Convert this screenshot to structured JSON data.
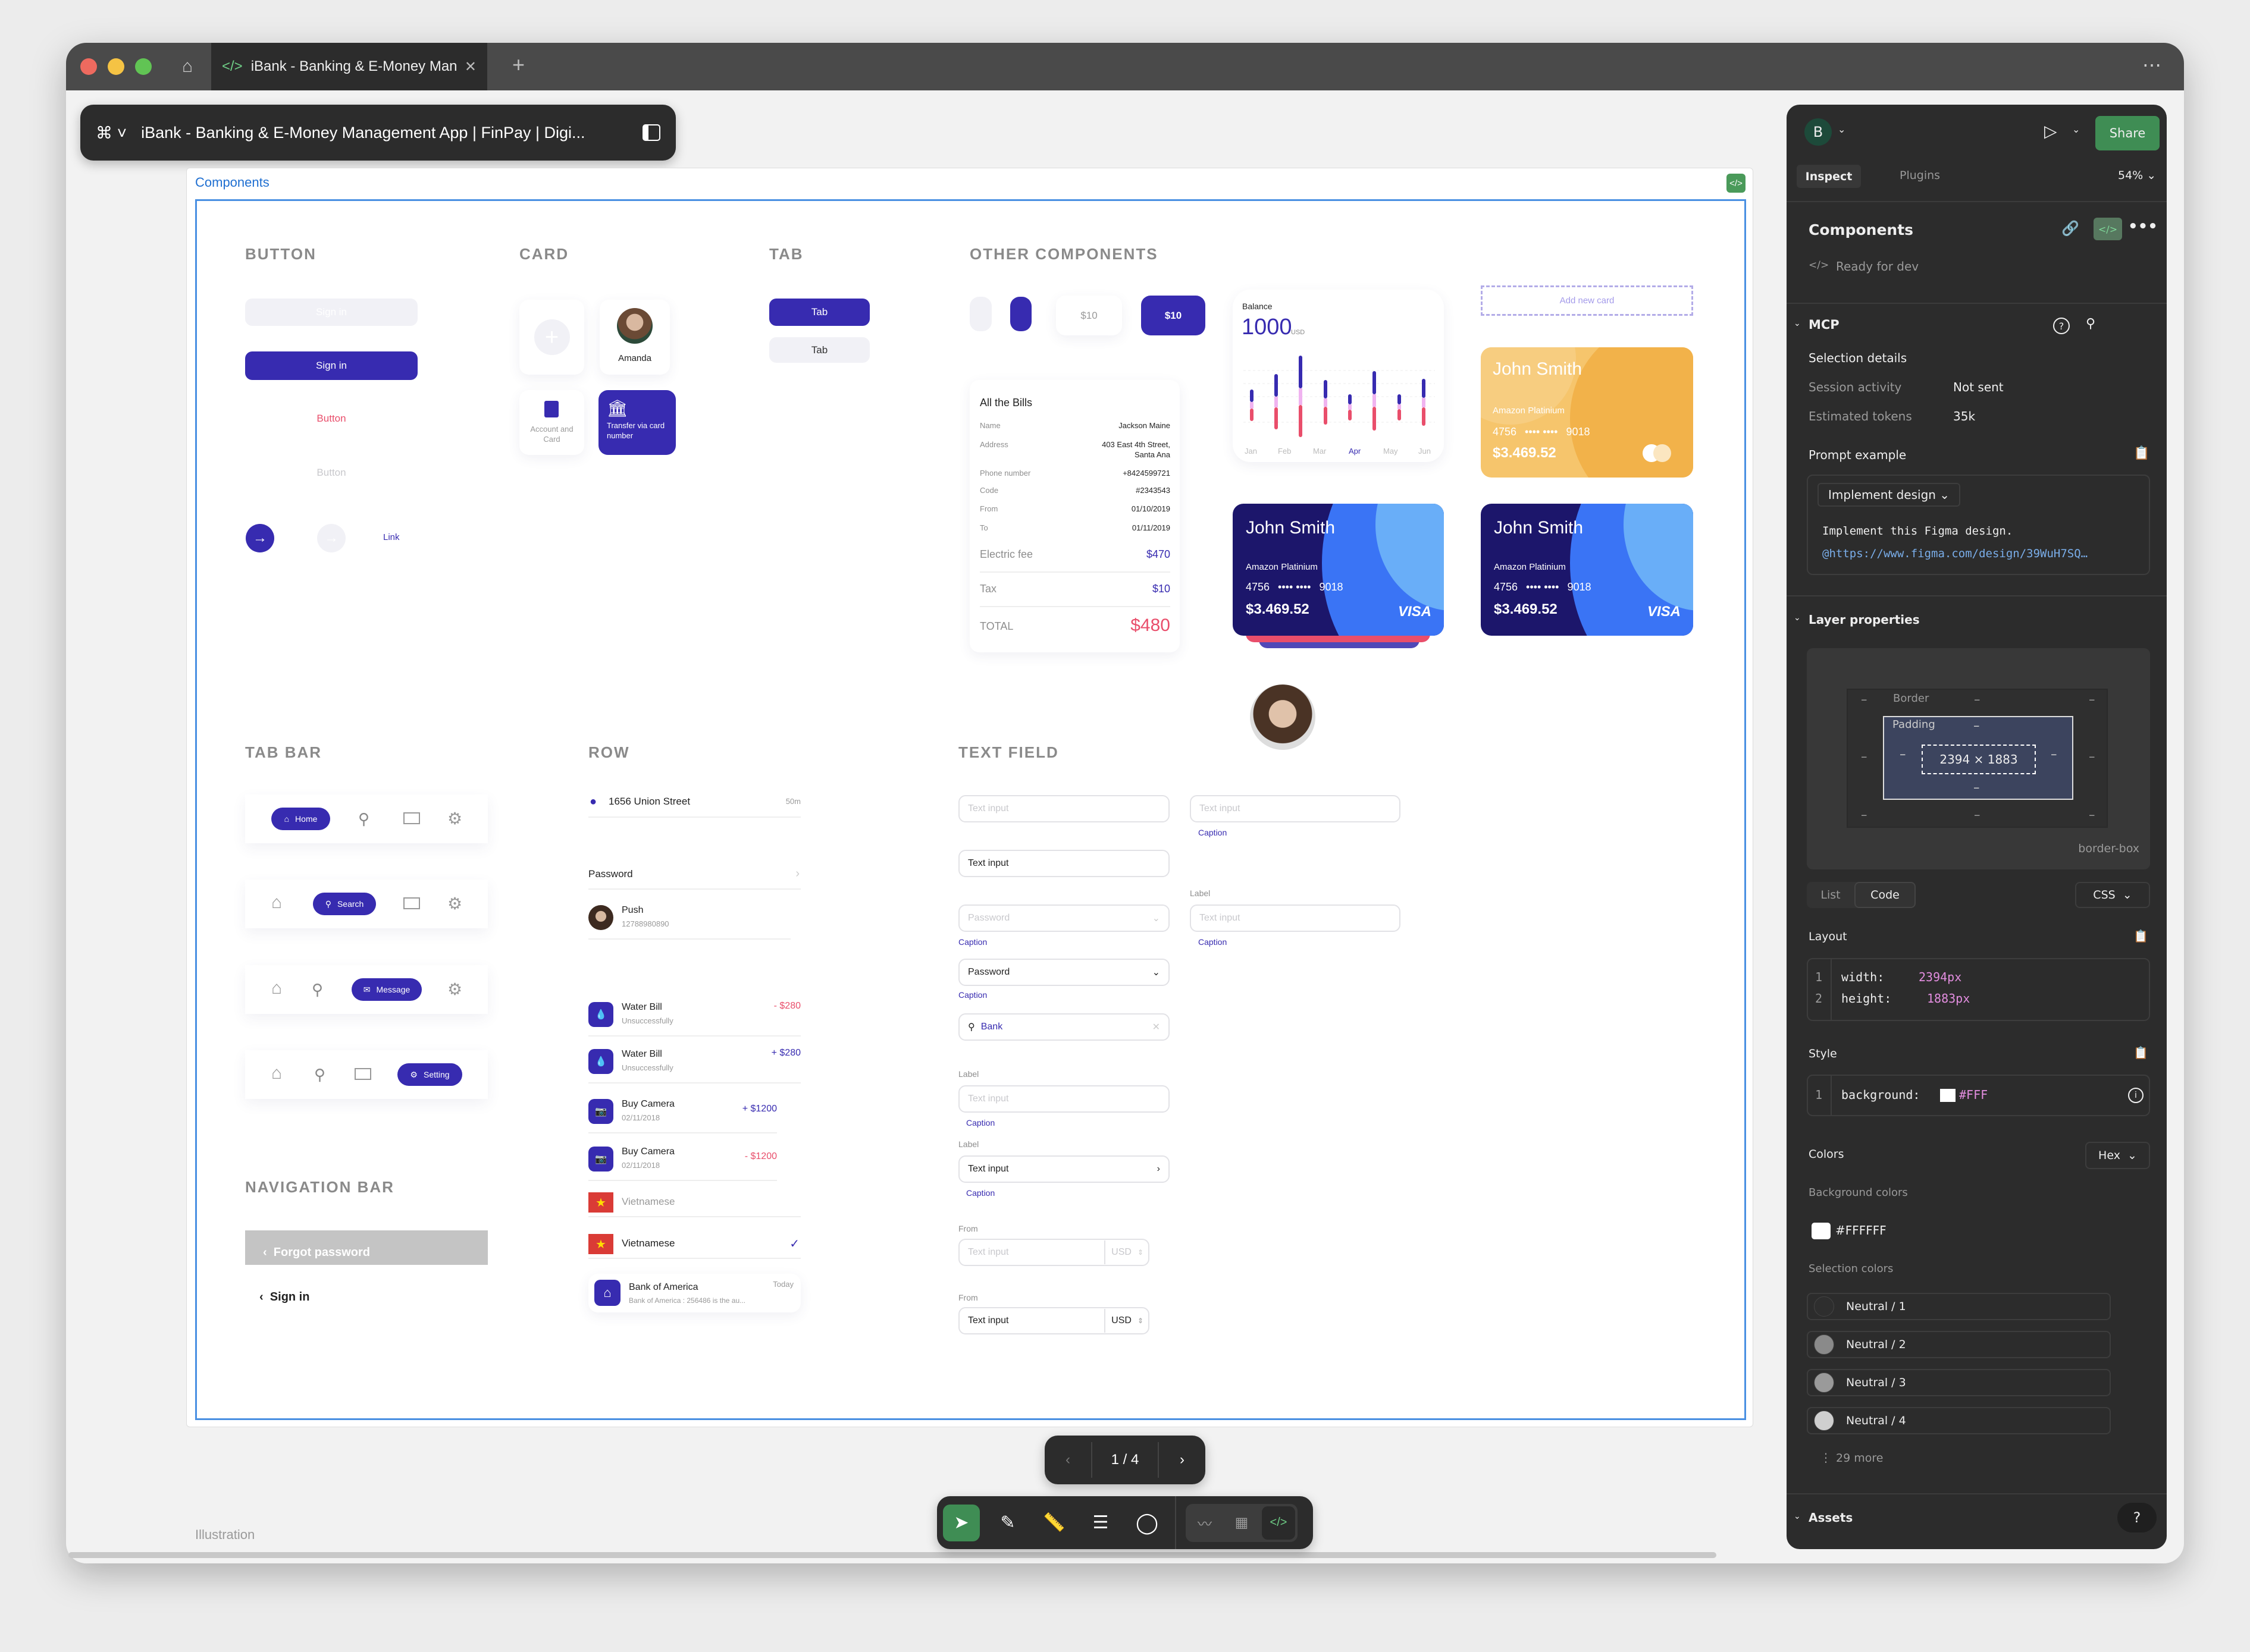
{
  "browser": {
    "tab_title": "iBank - Banking & E-Money Mana",
    "tab_icon": "code-icon",
    "new_tab": "+",
    "menu": "⋯"
  },
  "toolbar": {
    "file_title": "iBank - Banking & E-Money Management App | FinPay | Digi..."
  },
  "canvas": {
    "frame_label": "Components",
    "footer_label": "Illustration",
    "page_indicator": "1 / 4"
  },
  "design": {
    "colors": {
      "primary": "#372BB0",
      "danger": "#E94E6B",
      "yellow": "#F3B24C",
      "navy": "#1C166B",
      "blue": "#3A74F5"
    },
    "button": {
      "title": "BUTTON",
      "disabled": "Sign in",
      "primary": "Sign in",
      "text_red": "Button",
      "text_gray": "Button",
      "link": "Link"
    },
    "card": {
      "title": "CARD",
      "person": "Amanda",
      "account": "Account and Card",
      "transfer": "Transfer via card number"
    },
    "tab": {
      "title": "TAB",
      "active": "Tab",
      "inactive": "Tab"
    },
    "other": {
      "title": "OTHER COMPONENTS",
      "chip_light": "$10",
      "chip_dark": "$10",
      "add_card": "Add new card",
      "balance": {
        "label": "Balance",
        "amount": "1000",
        "currency": "USD",
        "months": [
          "Jan",
          "Feb",
          "Mar",
          "Apr",
          "May",
          "Jun"
        ],
        "active_month": "Apr"
      },
      "bills": {
        "title": "All the Bills",
        "rows": [
          {
            "label": "Name",
            "value": "Jackson Maine"
          },
          {
            "label": "Address",
            "value": "403 East 4th Street,",
            "value2": "Santa Ana"
          },
          {
            "label": "Phone number",
            "value": "+8424599721"
          },
          {
            "label": "Code",
            "value": "#2343543"
          },
          {
            "label": "From",
            "value": "01/10/2019"
          },
          {
            "label": "To",
            "value": "01/11/2019"
          }
        ],
        "electric_label": "Electric fee",
        "electric": "$470",
        "tax_label": "Tax",
        "tax": "$10",
        "total_label": "TOTAL",
        "total": "$480"
      },
      "bank_card": {
        "name": "John Smith",
        "type": "Amazon Platinium",
        "num_start": "4756",
        "num_mask": "•••• ••••",
        "num_end": "9018",
        "balance": "$3.469.52",
        "brand": "VISA"
      }
    },
    "tabbar": {
      "title": "TAB BAR",
      "items": [
        "Home",
        "Search",
        "Message",
        "Setting"
      ]
    },
    "navbar": {
      "title": "NAVIGATION BAR",
      "forgot": "Forgot password",
      "signin": "Sign in"
    },
    "row": {
      "title": "ROW",
      "location": "1656 Union Street",
      "distance": "50m",
      "password": "Password",
      "contact_name": "Push",
      "contact_number": "12788980890",
      "transactions": [
        {
          "title": "Water Bill",
          "sub": "Unsuccessfully",
          "amount": "- $280",
          "type": "out"
        },
        {
          "title": "Water Bill",
          "sub": "Unsuccessfully",
          "amount": "+ $280",
          "type": "in"
        },
        {
          "title": "Buy Camera",
          "sub": "02/11/2018",
          "amount": "+ $1200",
          "type": "in"
        },
        {
          "title": "Buy Camera",
          "sub": "02/11/2018",
          "amount": "- $1200",
          "type": "out"
        }
      ],
      "language1": "Vietnamese",
      "language2": "Vietnamese",
      "notif_title": "Bank of America",
      "notif_time": "Today",
      "notif_body": "Bank of America : 256486 is the au..."
    },
    "textfield": {
      "title": "TEXT FIELD",
      "placeholder": "Text input",
      "value": "Text input",
      "password": "Password",
      "search": "Bank",
      "caption": "Caption",
      "label": "Label",
      "from": "From",
      "currency": "USD"
    }
  },
  "inspect": {
    "avatar": "B",
    "share": "Share",
    "tabs": [
      "Inspect",
      "Plugins"
    ],
    "zoom": "54%",
    "component_title": "Components",
    "status": "Ready for dev",
    "mcp": {
      "title": "MCP",
      "selection": "Selection details",
      "session_label": "Session activity",
      "session_value": "Not sent",
      "tokens_label": "Estimated tokens",
      "tokens_value": "35k",
      "prompt_label": "Prompt example",
      "prompt_mode": "Implement design",
      "prompt_text": "Implement this Figma design.",
      "prompt_link": "@https://www.figma.com/design/39WuH7SQ…"
    },
    "layer": {
      "title": "Layer properties",
      "border": "Border",
      "padding": "Padding",
      "size": "2394 × 1883",
      "dash": "–",
      "box_sizing": "border-box",
      "view_tabs": [
        "List",
        "Code"
      ],
      "lang": "CSS",
      "layout_label": "Layout",
      "layout_lines": [
        {
          "n": "1",
          "prop": "width:",
          "val": "2394px"
        },
        {
          "n": "2",
          "prop": "height:",
          "val": "1883px"
        }
      ],
      "style_label": "Style",
      "style_line": {
        "n": "1",
        "prop": "background:",
        "val": "#FFF"
      },
      "colors_label": "Colors",
      "color_format": "Hex",
      "bg_colors_label": "Background colors",
      "bg_color": "#FFFFFF",
      "selection_colors_label": "Selection colors",
      "selection_colors": [
        {
          "name": "Neutral / 1",
          "hex": "#2E2E2E"
        },
        {
          "name": "Neutral / 2",
          "hex": "#8A8A8A"
        },
        {
          "name": "Neutral / 3",
          "hex": "#9A9A9A"
        },
        {
          "name": "Neutral / 4",
          "hex": "#CFCFCF"
        }
      ],
      "more": "29 more"
    },
    "assets": "Assets",
    "help": "?"
  }
}
